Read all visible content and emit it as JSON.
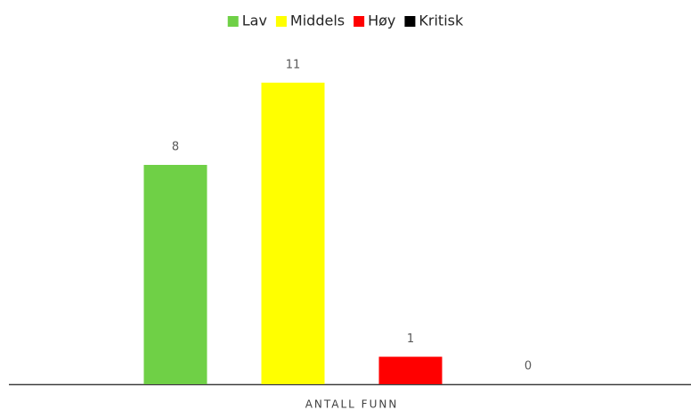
{
  "chart_data": {
    "type": "bar",
    "categories": [
      "ANTALL FUNN"
    ],
    "series": [
      {
        "name": "Lav",
        "color": "#6fd046",
        "values": [
          8
        ]
      },
      {
        "name": "Middels",
        "color": "#ffff00",
        "values": [
          11
        ]
      },
      {
        "name": "Høy",
        "color": "#ff0000",
        "values": [
          1
        ]
      },
      {
        "name": "Kritisk",
        "color": "#000000",
        "values": [
          0
        ]
      }
    ],
    "ylim": [
      0,
      12
    ],
    "legend": "top",
    "data_labels": true
  }
}
